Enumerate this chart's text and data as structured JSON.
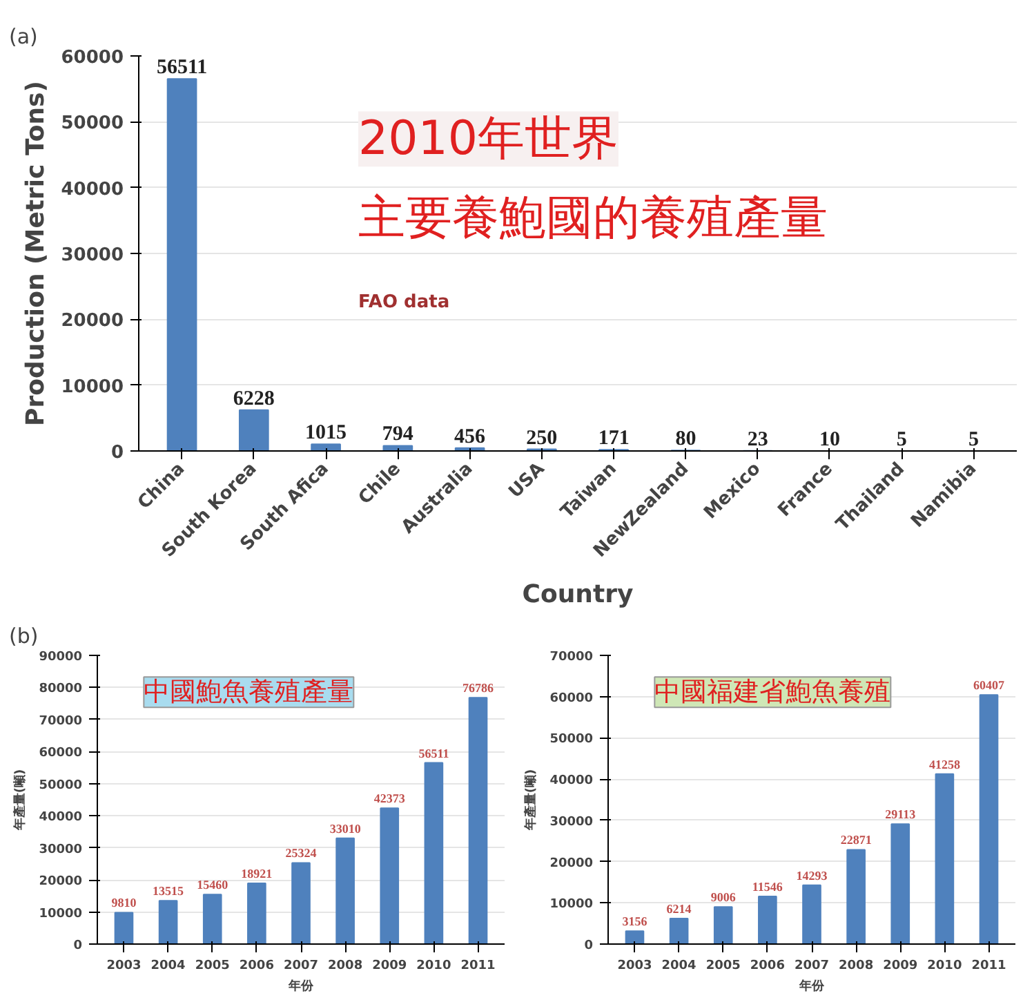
{
  "chart_data": [
    {
      "type": "bar",
      "title": "2010年世界主要養鮑國的養殖產量",
      "annotations": [
        "(a)",
        "FAO data"
      ],
      "xlabel": "Country",
      "ylabel": "Production (Metric Tons)",
      "categories": [
        "China",
        "South Korea",
        "South Afica",
        "Chile",
        "Australia",
        "USA",
        "Taiwan",
        "NewZealand",
        "Mexico",
        "France",
        "Thailand",
        "Namibia"
      ],
      "series": [
        {
          "color": "#4f81bd",
          "values": [
            56511,
            6228,
            1015,
            794,
            456,
            250,
            171,
            80,
            23,
            10,
            5,
            5
          ]
        }
      ],
      "ylim": [
        0,
        60000
      ],
      "yticks": [
        0,
        10000,
        20000,
        30000,
        40000,
        50000,
        60000
      ],
      "grid": "y",
      "data_labels": true
    },
    {
      "type": "bar",
      "title": "中國鮑魚養殖產量",
      "annotations": [
        "(b)"
      ],
      "xlabel": "年份",
      "ylabel": "年產量(噸)",
      "categories": [
        "2003",
        "2004",
        "2005",
        "2006",
        "2007",
        "2008",
        "2009",
        "2010",
        "2011"
      ],
      "series": [
        {
          "color": "#4f81bd",
          "values": [
            9810,
            13515,
            15460,
            18921,
            25324,
            33010,
            42373,
            56511,
            76786
          ]
        }
      ],
      "ylim": [
        0,
        90000
      ],
      "yticks": [
        0,
        10000,
        20000,
        30000,
        40000,
        50000,
        60000,
        70000,
        80000,
        90000
      ],
      "grid": "y",
      "data_labels": true
    },
    {
      "type": "bar",
      "title": "中國福建省鮑魚養殖",
      "xlabel": "年份",
      "ylabel": "年產量(噸)",
      "categories": [
        "2003",
        "2004",
        "2005",
        "2006",
        "2007",
        "2008",
        "2009",
        "2010",
        "2011"
      ],
      "series": [
        {
          "color": "#4f81bd",
          "values": [
            3156,
            6214,
            9006,
            11546,
            14293,
            22871,
            29113,
            41258,
            60407
          ]
        }
      ],
      "ylim": [
        0,
        70000
      ],
      "yticks": [
        0,
        10000,
        20000,
        30000,
        40000,
        50000,
        60000,
        70000
      ],
      "grid": "y",
      "data_labels": true
    }
  ]
}
